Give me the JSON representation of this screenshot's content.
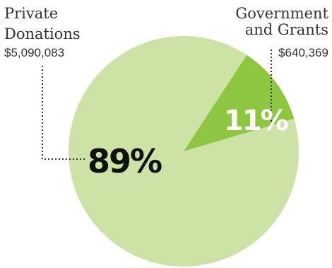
{
  "chart_data": {
    "type": "pie",
    "slices": [
      {
        "label_line1": "Private",
        "label_line2": "Donations",
        "amount": "$5,090,083",
        "value": 5090083,
        "percent_label": "89%",
        "color": "#cde3a6"
      },
      {
        "label_line1": "Government",
        "label_line2": "and Grants",
        "amount": "$640,369",
        "value": 640369,
        "percent_label": "11%",
        "color": "#8dc63f"
      }
    ],
    "legend": "none"
  }
}
